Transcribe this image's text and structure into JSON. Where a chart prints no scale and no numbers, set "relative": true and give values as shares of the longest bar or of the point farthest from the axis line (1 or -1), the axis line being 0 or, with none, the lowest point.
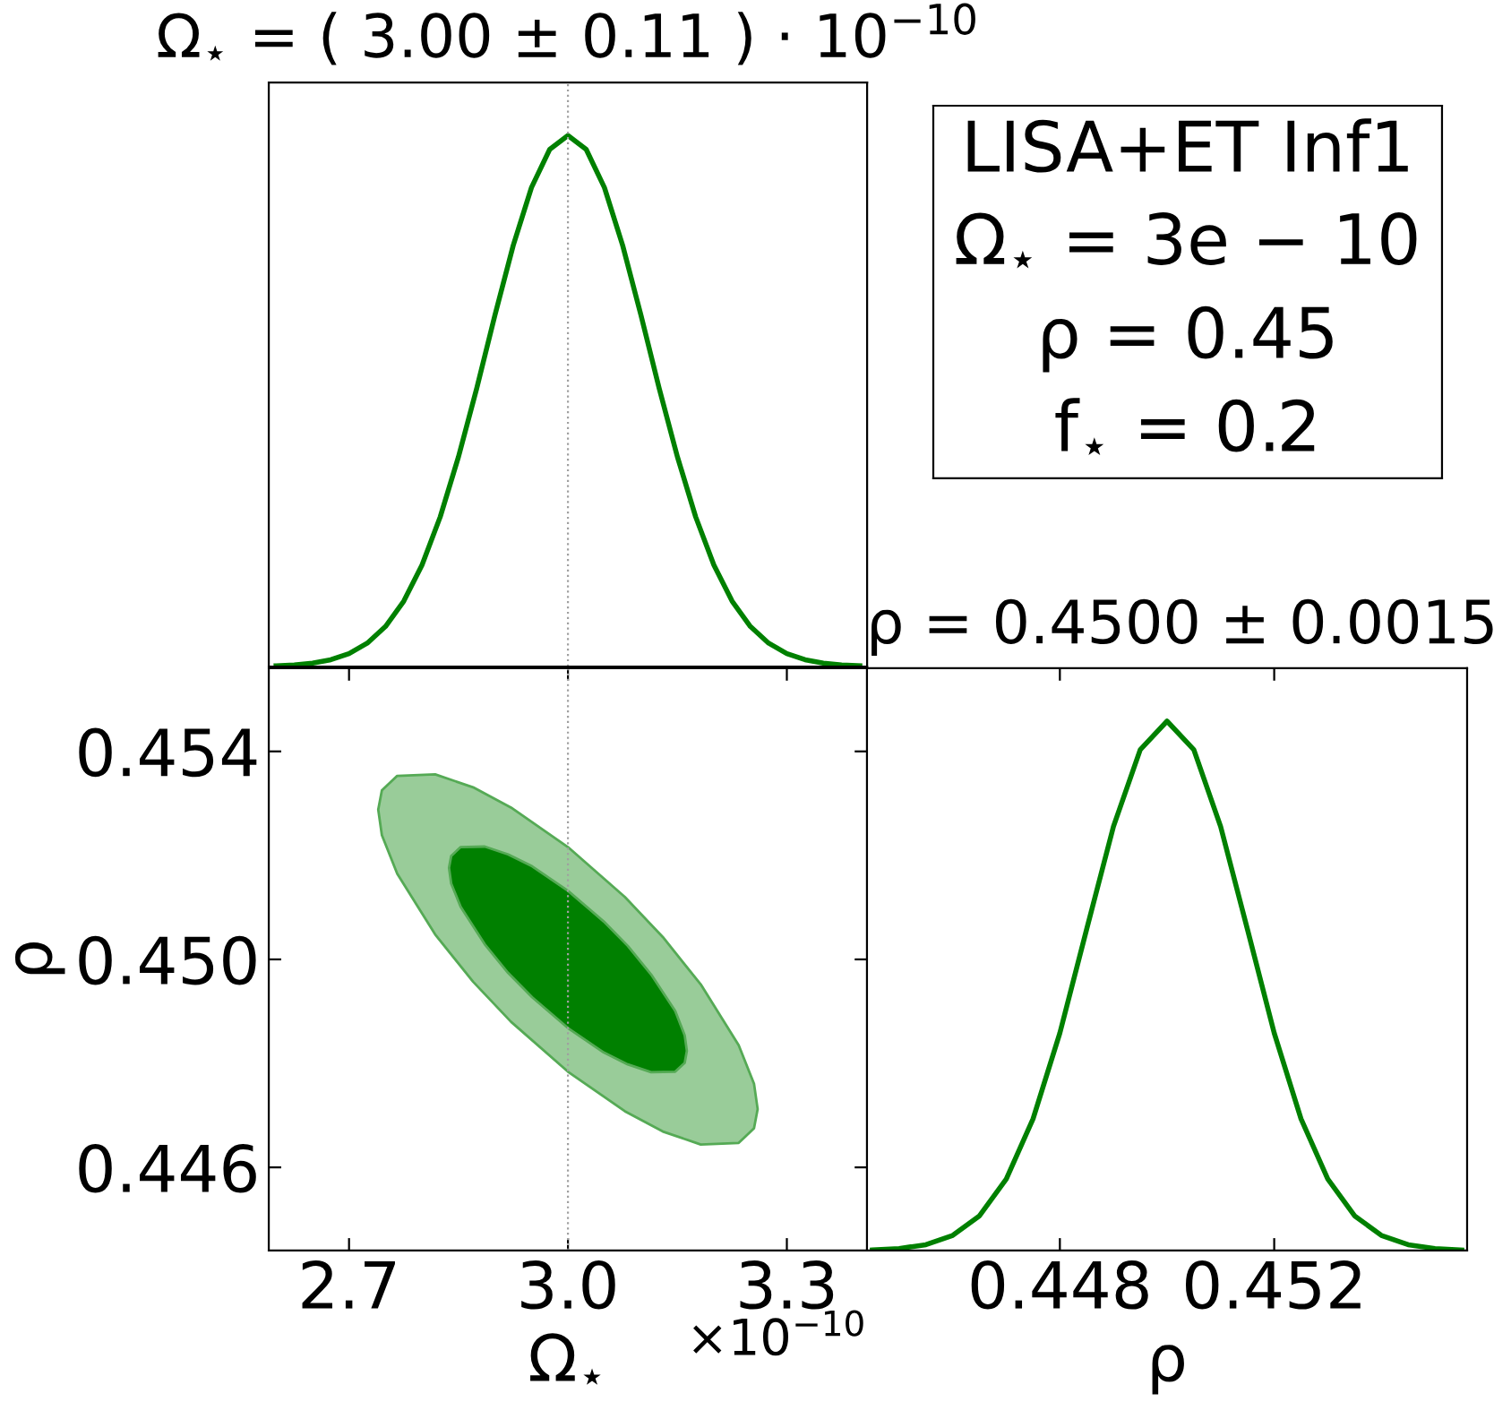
{
  "chart_data": [
    {
      "type": "line",
      "title": "Ω$_{⋆}$ = ( 3.00 ± 0.11 ) · 10$^{−10}$",
      "relative": true,
      "xlim": [
        2.59,
        3.41
      ],
      "ref_lines": [
        {
          "axis": "x",
          "value": 3.0,
          "color": "#a0a0a0",
          "line_style": "dotted"
        }
      ],
      "series": [
        {
          "color": "#008000",
          "x": [
            2.6,
            2.625,
            2.65,
            2.675,
            2.7,
            2.725,
            2.75,
            2.775,
            2.8,
            2.825,
            2.85,
            2.875,
            2.9,
            2.925,
            2.95,
            2.975,
            3.0,
            3.025,
            3.05,
            3.075,
            3.1,
            3.125,
            3.15,
            3.175,
            3.2,
            3.225,
            3.25,
            3.275,
            3.3,
            3.325,
            3.35,
            3.375,
            3.4
          ],
          "values": [
            0.0013,
            0.003,
            0.0063,
            0.0127,
            0.0243,
            0.044,
            0.0755,
            0.123,
            0.191,
            0.282,
            0.395,
            0.524,
            0.662,
            0.793,
            0.902,
            0.974,
            1,
            0.974,
            0.902,
            0.793,
            0.662,
            0.524,
            0.395,
            0.282,
            0.191,
            0.123,
            0.0755,
            0.044,
            0.0243,
            0.0127,
            0.0063,
            0.003,
            0.0013
          ]
        }
      ]
    },
    {
      "type": "other",
      "annotations": [
        "LISA+ET Inf1",
        "Ω$_{⋆}$ = 3e − 10",
        "ρ = 0.45",
        "f$_{⋆}$ = 0.2"
      ]
    },
    {
      "type": "area",
      "xlabel": "Ω$_{⋆}$",
      "ylabel": "ρ",
      "xlim": [
        2.59,
        3.41
      ],
      "xticks": [
        2.7,
        {
          "value": 3.0,
          "label": "3.0"
        },
        3.3
      ],
      "ylim": [
        0.4444,
        0.4556
      ],
      "yticks": [
        0.446,
        {
          "value": 0.45,
          "label": "0.450"
        },
        0.454
      ],
      "annotations": [
        "×10$^{−10}$"
      ],
      "ref_lines": [
        {
          "axis": "x",
          "value": 3.0,
          "color": "#a0a0a0",
          "line_style": "dotted"
        }
      ],
      "series": [
        {
          "color": "#99cc99",
          "x": [
            2.74,
            2.745,
            2.766,
            2.818,
            2.87,
            2.922,
            3.0,
            3.078,
            3.13,
            3.182,
            3.234,
            3.255,
            3.26
          ],
          "values": [
            null,
            null,
            null,
            null,
            null,
            null,
            null,
            null,
            null,
            null,
            null,
            null,
            null
          ],
          "lower": [
            0.45288,
            0.45239,
            0.45165,
            0.45048,
            0.44957,
            0.4488,
            0.44784,
            0.44708,
            0.44669,
            0.44644,
            0.44647,
            0.44675,
            0.44712
          ],
          "upper": [
            0.45288,
            0.45325,
            0.45353,
            0.45356,
            0.45331,
            0.45292,
            0.45216,
            0.4512,
            0.45043,
            0.44952,
            0.44835,
            0.44761,
            0.44712
          ]
        },
        {
          "color": "#008000",
          "x": [
            2.837,
            2.84,
            2.853,
            2.886,
            2.918,
            2.951,
            3.0,
            3.049,
            3.082,
            3.114,
            3.147,
            3.16,
            3.163
          ],
          "values": [
            null,
            null,
            null,
            null,
            null,
            null,
            null,
            null,
            null,
            null,
            null,
            null,
            null
          ],
          "lower": [
            0.45176,
            0.45146,
            0.45101,
            0.45029,
            0.44974,
            0.44927,
            0.44868,
            0.44821,
            0.44798,
            0.44783,
            0.44784,
            0.44801,
            0.44824
          ],
          "upper": [
            0.45176,
            0.45199,
            0.45216,
            0.45217,
            0.45202,
            0.45179,
            0.45132,
            0.45073,
            0.45026,
            0.44971,
            0.44901,
            0.44854,
            0.44824
          ]
        }
      ]
    },
    {
      "type": "line",
      "title": "ρ = 0.4500 ± 0.0015",
      "xlabel": "ρ",
      "relative": true,
      "xlim": [
        0.4444,
        0.4556
      ],
      "xticks": [
        0.448,
        0.452
      ],
      "series": [
        {
          "color": "#008000",
          "x": [
            0.4445,
            0.445,
            0.4455,
            0.446,
            0.4465,
            0.447,
            0.4475,
            0.448,
            0.4485,
            0.449,
            0.4495,
            0.45,
            0.4505,
            0.451,
            0.4515,
            0.452,
            0.4525,
            0.453,
            0.4535,
            0.454,
            0.4545,
            0.455,
            0.4555
          ],
          "values": [
            0.0012,
            0.0039,
            0.0111,
            0.0286,
            0.0657,
            0.135,
            0.249,
            0.411,
            0.607,
            0.801,
            0.946,
            1,
            0.946,
            0.801,
            0.607,
            0.411,
            0.249,
            0.135,
            0.0657,
            0.0286,
            0.0111,
            0.0039,
            0.0012
          ]
        }
      ]
    }
  ]
}
